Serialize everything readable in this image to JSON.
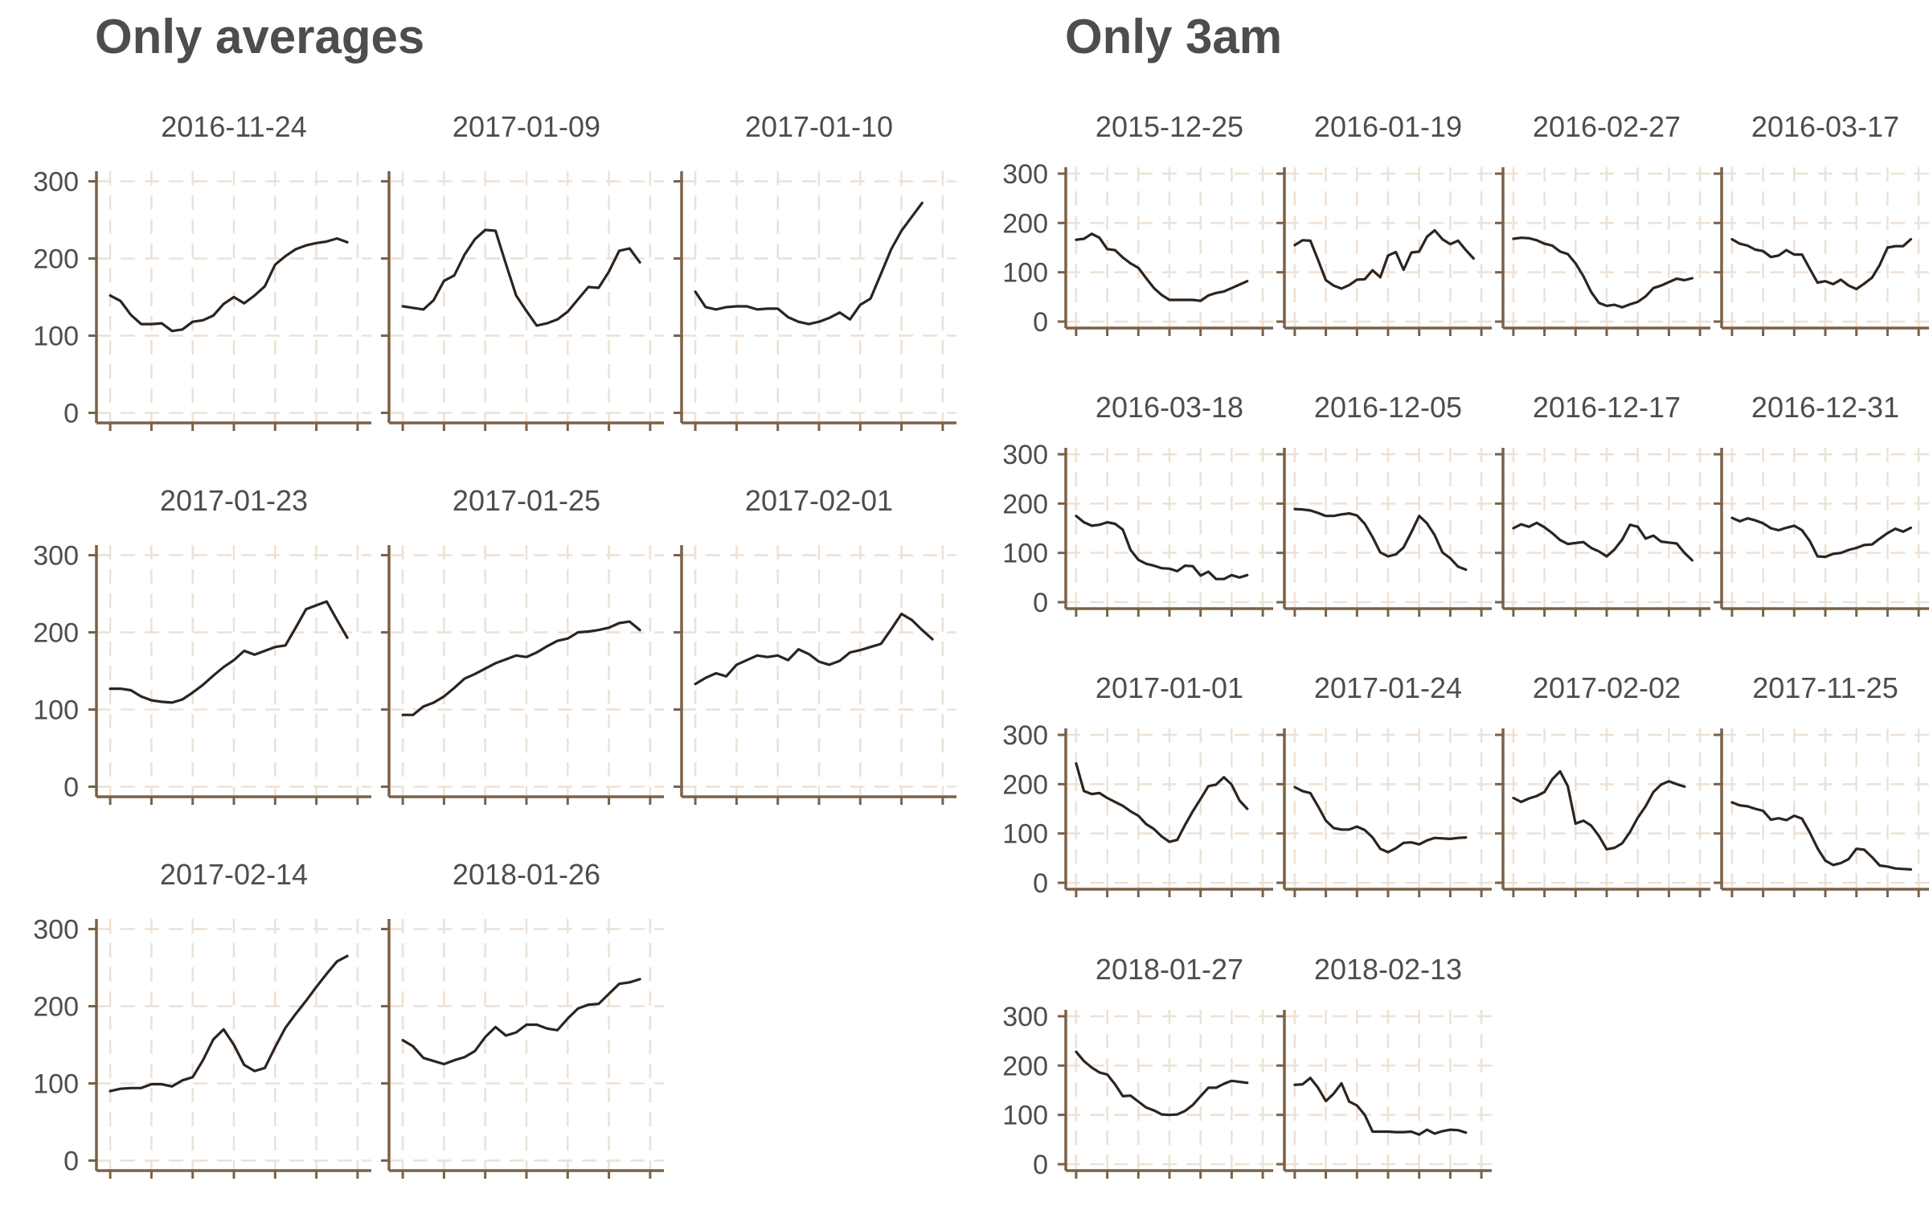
{
  "colors": {
    "line": "#2b2420",
    "axis": "#7a6148",
    "grid": "#ede1d6",
    "text": "#4d4d4d"
  },
  "chart_data": [
    {
      "type": "line",
      "title": "Only averages",
      "ylim": [
        0,
        300
      ],
      "yticks": [
        0,
        100,
        200,
        300
      ],
      "grid": true,
      "panels": [
        {
          "name": "2016-11-24",
          "values": [
            152,
            145,
            127,
            115,
            115,
            116,
            106,
            108,
            118,
            120,
            126,
            141,
            150,
            142,
            152,
            164,
            192,
            203,
            212,
            217,
            220,
            222,
            226,
            221
          ]
        },
        {
          "name": "2017-01-09",
          "values": [
            138,
            136,
            134,
            146,
            171,
            178,
            205,
            225,
            237,
            236,
            193,
            152,
            132,
            113,
            116,
            121,
            131,
            147,
            163,
            162,
            183,
            210,
            213,
            195
          ]
        },
        {
          "name": "2017-01-10",
          "values": [
            157,
            137,
            134,
            137,
            138,
            138,
            134,
            135,
            135,
            124,
            118,
            115,
            118,
            123,
            130,
            121,
            140,
            148,
            180,
            212,
            236,
            254,
            272
          ]
        },
        {
          "name": "2017-01-23",
          "values": [
            127,
            127,
            125,
            117,
            112,
            110,
            109,
            113,
            122,
            132,
            144,
            155,
            164,
            176,
            171,
            176,
            181,
            183,
            206,
            230,
            235,
            240,
            216,
            193
          ]
        },
        {
          "name": "2017-01-25",
          "values": [
            93,
            93,
            104,
            109,
            117,
            128,
            140,
            146,
            153,
            160,
            165,
            170,
            168,
            174,
            182,
            189,
            192,
            200,
            201,
            203,
            206,
            212,
            214,
            203
          ]
        },
        {
          "name": "2017-02-01",
          "values": [
            133,
            141,
            147,
            143,
            158,
            164,
            170,
            168,
            170,
            164,
            178,
            172,
            162,
            158,
            163,
            174,
            177,
            181,
            185,
            204,
            224,
            216,
            203,
            191
          ]
        },
        {
          "name": "2017-02-14",
          "values": [
            90,
            93,
            94,
            94,
            99,
            99,
            96,
            104,
            108,
            130,
            157,
            170,
            150,
            124,
            116,
            120,
            147,
            172,
            190,
            207,
            225,
            242,
            258,
            265
          ]
        },
        {
          "name": "2018-01-26",
          "values": [
            156,
            148,
            133,
            129,
            125,
            130,
            134,
            142,
            160,
            173,
            162,
            166,
            176,
            176,
            171,
            169,
            184,
            197,
            202,
            203,
            216,
            229,
            231,
            235
          ]
        }
      ]
    },
    {
      "type": "line",
      "title": "Only 3am",
      "ylim": [
        0,
        300
      ],
      "yticks": [
        0,
        100,
        200,
        300
      ],
      "grid": true,
      "panels": [
        {
          "name": "2015-12-25",
          "values": [
            166,
            168,
            178,
            170,
            147,
            145,
            130,
            118,
            109,
            88,
            68,
            54,
            44,
            44,
            44,
            44,
            42,
            53,
            58,
            61,
            68,
            75,
            82
          ]
        },
        {
          "name": "2016-01-19",
          "values": [
            155,
            165,
            164,
            125,
            84,
            73,
            67,
            74,
            85,
            86,
            104,
            90,
            134,
            141,
            105,
            140,
            142,
            172,
            185,
            167,
            157,
            164,
            145,
            128
          ]
        },
        {
          "name": "2016-02-27",
          "values": [
            168,
            170,
            169,
            165,
            158,
            154,
            142,
            137,
            118,
            92,
            60,
            38,
            32,
            34,
            29,
            35,
            40,
            51,
            68,
            73,
            80,
            87,
            84,
            88
          ]
        },
        {
          "name": "2016-03-17",
          "values": [
            167,
            158,
            154,
            146,
            143,
            131,
            134,
            145,
            136,
            136,
            107,
            79,
            82,
            76,
            85,
            73,
            66,
            77,
            89,
            115,
            150,
            153,
            153,
            167
          ]
        },
        {
          "name": "2016-03-18",
          "values": [
            175,
            162,
            155,
            157,
            162,
            159,
            147,
            106,
            86,
            78,
            74,
            69,
            68,
            63,
            74,
            73,
            54,
            62,
            47,
            47,
            55,
            50,
            55
          ]
        },
        {
          "name": "2016-12-05",
          "values": [
            189,
            188,
            186,
            181,
            175,
            175,
            178,
            180,
            176,
            159,
            132,
            101,
            93,
            97,
            111,
            142,
            175,
            160,
            136,
            101,
            89,
            72,
            66
          ]
        },
        {
          "name": "2016-12-17",
          "values": [
            150,
            158,
            153,
            161,
            152,
            140,
            126,
            118,
            120,
            122,
            110,
            103,
            93,
            107,
            127,
            157,
            153,
            129,
            135,
            123,
            121,
            119,
            100,
            85
          ]
        },
        {
          "name": "2016-12-31",
          "values": [
            171,
            164,
            170,
            166,
            160,
            150,
            146,
            151,
            155,
            146,
            124,
            93,
            92,
            98,
            100,
            106,
            110,
            116,
            117,
            129,
            140,
            149,
            143,
            151
          ]
        },
        {
          "name": "2017-01-01",
          "values": [
            242,
            186,
            180,
            182,
            172,
            164,
            156,
            145,
            136,
            119,
            109,
            94,
            83,
            87,
            117,
            145,
            170,
            196,
            199,
            214,
            199,
            167,
            150
          ]
        },
        {
          "name": "2017-01-24",
          "values": [
            194,
            186,
            182,
            155,
            126,
            111,
            108,
            108,
            114,
            107,
            92,
            69,
            62,
            70,
            81,
            82,
            78,
            86,
            91,
            90,
            89,
            91,
            92
          ]
        },
        {
          "name": "2017-02-02",
          "values": [
            172,
            164,
            171,
            176,
            184,
            210,
            226,
            196,
            120,
            126,
            116,
            95,
            68,
            71,
            80,
            103,
            132,
            155,
            184,
            199,
            206,
            200,
            195
          ]
        },
        {
          "name": "2017-11-25",
          "values": [
            163,
            157,
            155,
            150,
            146,
            128,
            131,
            127,
            136,
            130,
            102,
            70,
            45,
            36,
            40,
            48,
            69,
            67,
            52,
            35,
            33,
            29,
            28,
            27
          ]
        },
        {
          "name": "2018-01-27",
          "values": [
            228,
            209,
            196,
            186,
            182,
            162,
            138,
            139,
            127,
            115,
            109,
            101,
            100,
            101,
            108,
            120,
            138,
            155,
            155,
            163,
            169,
            167,
            165
          ]
        },
        {
          "name": "2018-02-13",
          "values": [
            161,
            162,
            175,
            155,
            128,
            143,
            164,
            127,
            119,
            100,
            66,
            66,
            66,
            65,
            65,
            66,
            60,
            70,
            62,
            67,
            70,
            69,
            64
          ]
        }
      ]
    }
  ]
}
